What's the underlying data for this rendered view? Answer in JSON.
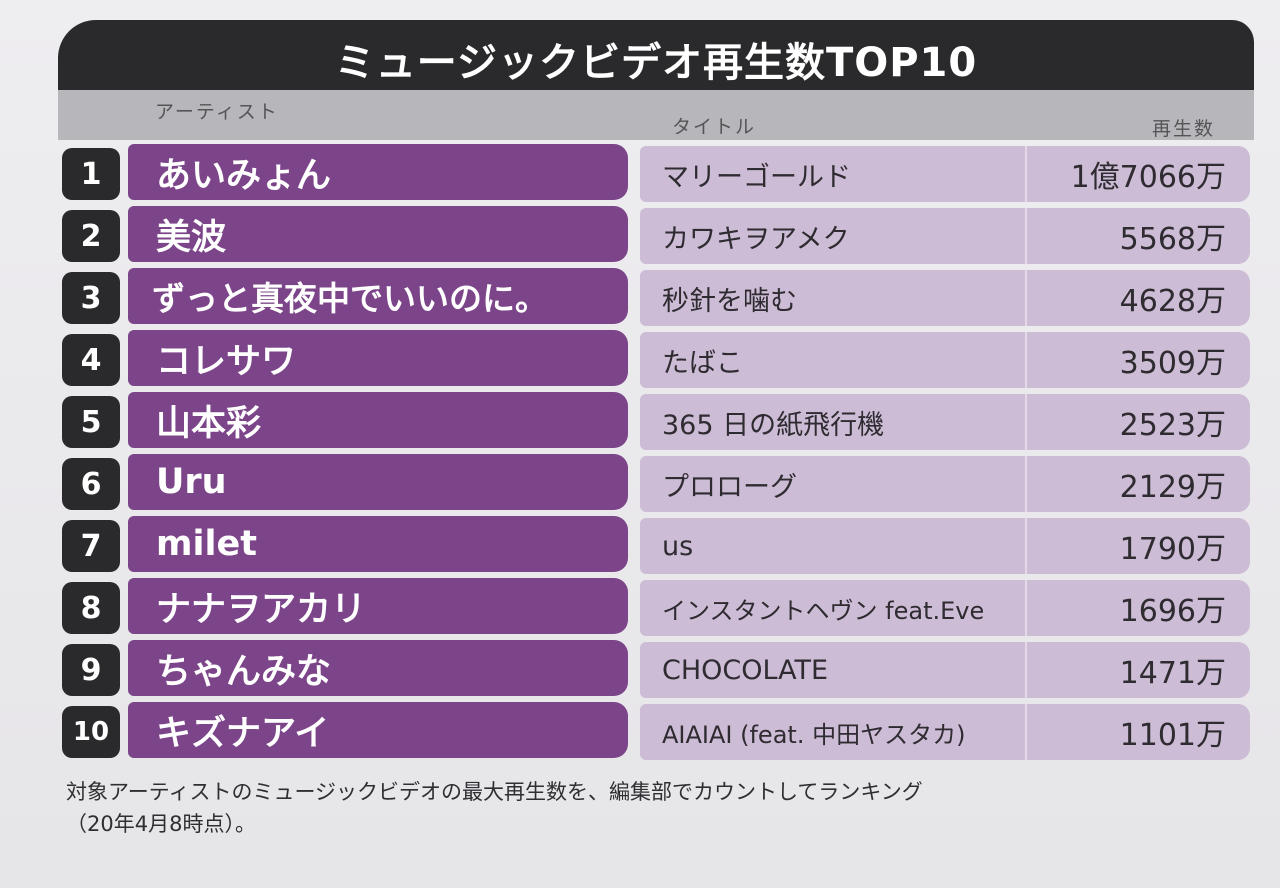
{
  "title": "ミュージックビデオ再生数TOP10",
  "headers": {
    "artist": "アーティスト",
    "title": "タイトル",
    "plays": "再生数"
  },
  "rows": [
    {
      "rank": "1",
      "artist": "あいみょん",
      "song": "マリーゴールド",
      "plays": "1億7066万"
    },
    {
      "rank": "2",
      "artist": "美波",
      "song": "カワキヲアメク",
      "plays": "5568万"
    },
    {
      "rank": "3",
      "artist": "ずっと真夜中でいいのに。",
      "song": "秒針を噛む",
      "plays": "4628万"
    },
    {
      "rank": "4",
      "artist": "コレサワ",
      "song": "たばこ",
      "plays": "3509万"
    },
    {
      "rank": "5",
      "artist": "山本彩",
      "song": "365 日の紙飛行機",
      "plays": "2523万"
    },
    {
      "rank": "6",
      "artist": "Uru",
      "song": "プロローグ",
      "plays": "2129万"
    },
    {
      "rank": "7",
      "artist": "milet",
      "song": "us",
      "plays": "1790万"
    },
    {
      "rank": "8",
      "artist": "ナナヲアカリ",
      "song": "インスタントヘヴン feat.Eve",
      "plays": "1696万"
    },
    {
      "rank": "9",
      "artist": "ちゃんみな",
      "song": "CHOCOLATE",
      "plays": "1471万"
    },
    {
      "rank": "10",
      "artist": "キズナアイ",
      "song": "AIAIAI (feat. 中田ヤスタカ)",
      "plays": "1101万"
    }
  ],
  "footnote": {
    "line1": "対象アーティストのミュージックビデオの最大再生数を、編集部でカウントしてランキング",
    "line2": "（20年4月8時点）。"
  }
}
